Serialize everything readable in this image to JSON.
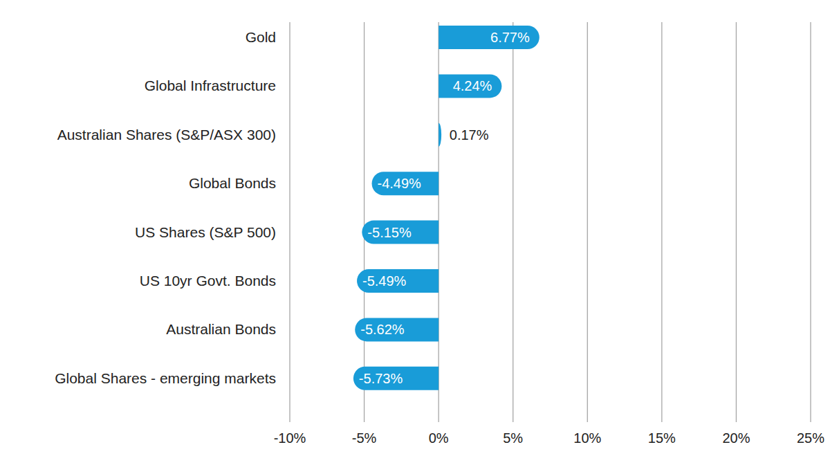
{
  "chart_data": {
    "type": "bar",
    "orientation": "horizontal",
    "categories": [
      "Gold",
      "Global Infrastructure",
      "Australian Shares (S&P/ASX 300)",
      "Global Bonds",
      "US Shares (S&P 500)",
      "US 10yr Govt. Bonds",
      "Australian Bonds",
      "Global Shares - emerging markets"
    ],
    "values": [
      6.77,
      4.24,
      0.17,
      -4.49,
      -5.15,
      -5.49,
      -5.62,
      -5.73
    ],
    "value_labels": [
      "6.77%",
      "4.24%",
      "0.17%",
      "-4.49%",
      "-5.15%",
      "-5.49%",
      "-5.62%",
      "-5.73%"
    ],
    "data_labels": true,
    "color": "#199cd8",
    "xlim": [
      -10,
      25
    ],
    "xticks": [
      {
        "value": -10,
        "label": "-10%"
      },
      {
        "value": -5,
        "label": "-5%"
      },
      {
        "value": 0,
        "label": "0%"
      },
      {
        "value": 5,
        "label": "5%"
      },
      {
        "value": 10,
        "label": "10%"
      },
      {
        "value": 15,
        "label": "15%"
      },
      {
        "value": 20,
        "label": "20%"
      },
      {
        "value": 25,
        "label": "25%"
      }
    ],
    "grid": true
  }
}
